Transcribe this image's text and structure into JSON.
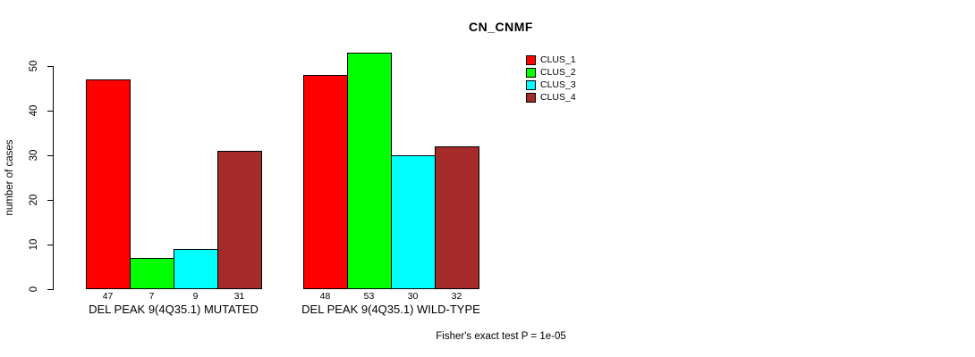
{
  "chart_data": {
    "type": "bar",
    "title": "CN_CNMF",
    "xlabel": "",
    "ylabel": "number of cases",
    "ylim": [
      0,
      50
    ],
    "yticks": [
      0,
      10,
      20,
      30,
      40,
      50
    ],
    "grid": false,
    "legend_position": "top-right-outside",
    "categories": [
      "DEL PEAK 9(4Q35.1) MUTATED",
      "DEL PEAK 9(4Q35.1) WILD-TYPE"
    ],
    "series": [
      {
        "name": "CLUS_1",
        "color": "#FF0000",
        "values": [
          47,
          48
        ]
      },
      {
        "name": "CLUS_2",
        "color": "#00FF00",
        "values": [
          7,
          53
        ]
      },
      {
        "name": "CLUS_3",
        "color": "#00FFFF",
        "values": [
          9,
          30
        ]
      },
      {
        "name": "CLUS_4",
        "color": "#A52A2A",
        "values": [
          31,
          32
        ]
      }
    ],
    "bar_value_labels": [
      [
        "47",
        "7",
        "9",
        "31"
      ],
      [
        "48",
        "53",
        "30",
        "32"
      ]
    ],
    "annotation": "Fisher's exact test P = 1e-05"
  },
  "legend": {
    "items": [
      {
        "label": "CLUS_1",
        "color": "#FF0000"
      },
      {
        "label": "CLUS_2",
        "color": "#00FF00"
      },
      {
        "label": "CLUS_3",
        "color": "#00FFFF"
      },
      {
        "label": "CLUS_4",
        "color": "#A52A2A"
      }
    ]
  },
  "colors": {
    "axis": "#000000",
    "bar_border": "#000000",
    "background": "#FFFFFF"
  }
}
